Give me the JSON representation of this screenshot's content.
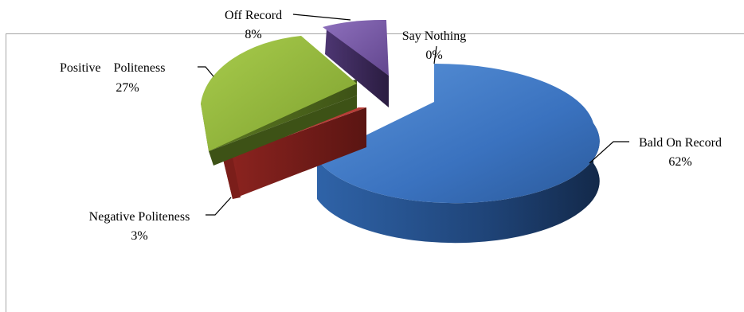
{
  "chart_data": {
    "type": "pie",
    "style": "3d-exploded",
    "slices": [
      {
        "label": "Bald On Record",
        "value": 62,
        "pct_label": "62%",
        "color": "#3f76c0"
      },
      {
        "label": "Negative Politeness",
        "value": 3,
        "pct_label": "3%",
        "color": "#b5332e"
      },
      {
        "label": "Positive    Politeness",
        "value": 27,
        "pct_label": "27%",
        "color": "#8fb339"
      },
      {
        "label": "Off Record",
        "value": 8,
        "pct_label": "8%",
        "color": "#7a5ca8"
      },
      {
        "label": "Say Nothing",
        "value": 0,
        "pct_label": "0%",
        "color": "#3f76c0"
      }
    ]
  }
}
